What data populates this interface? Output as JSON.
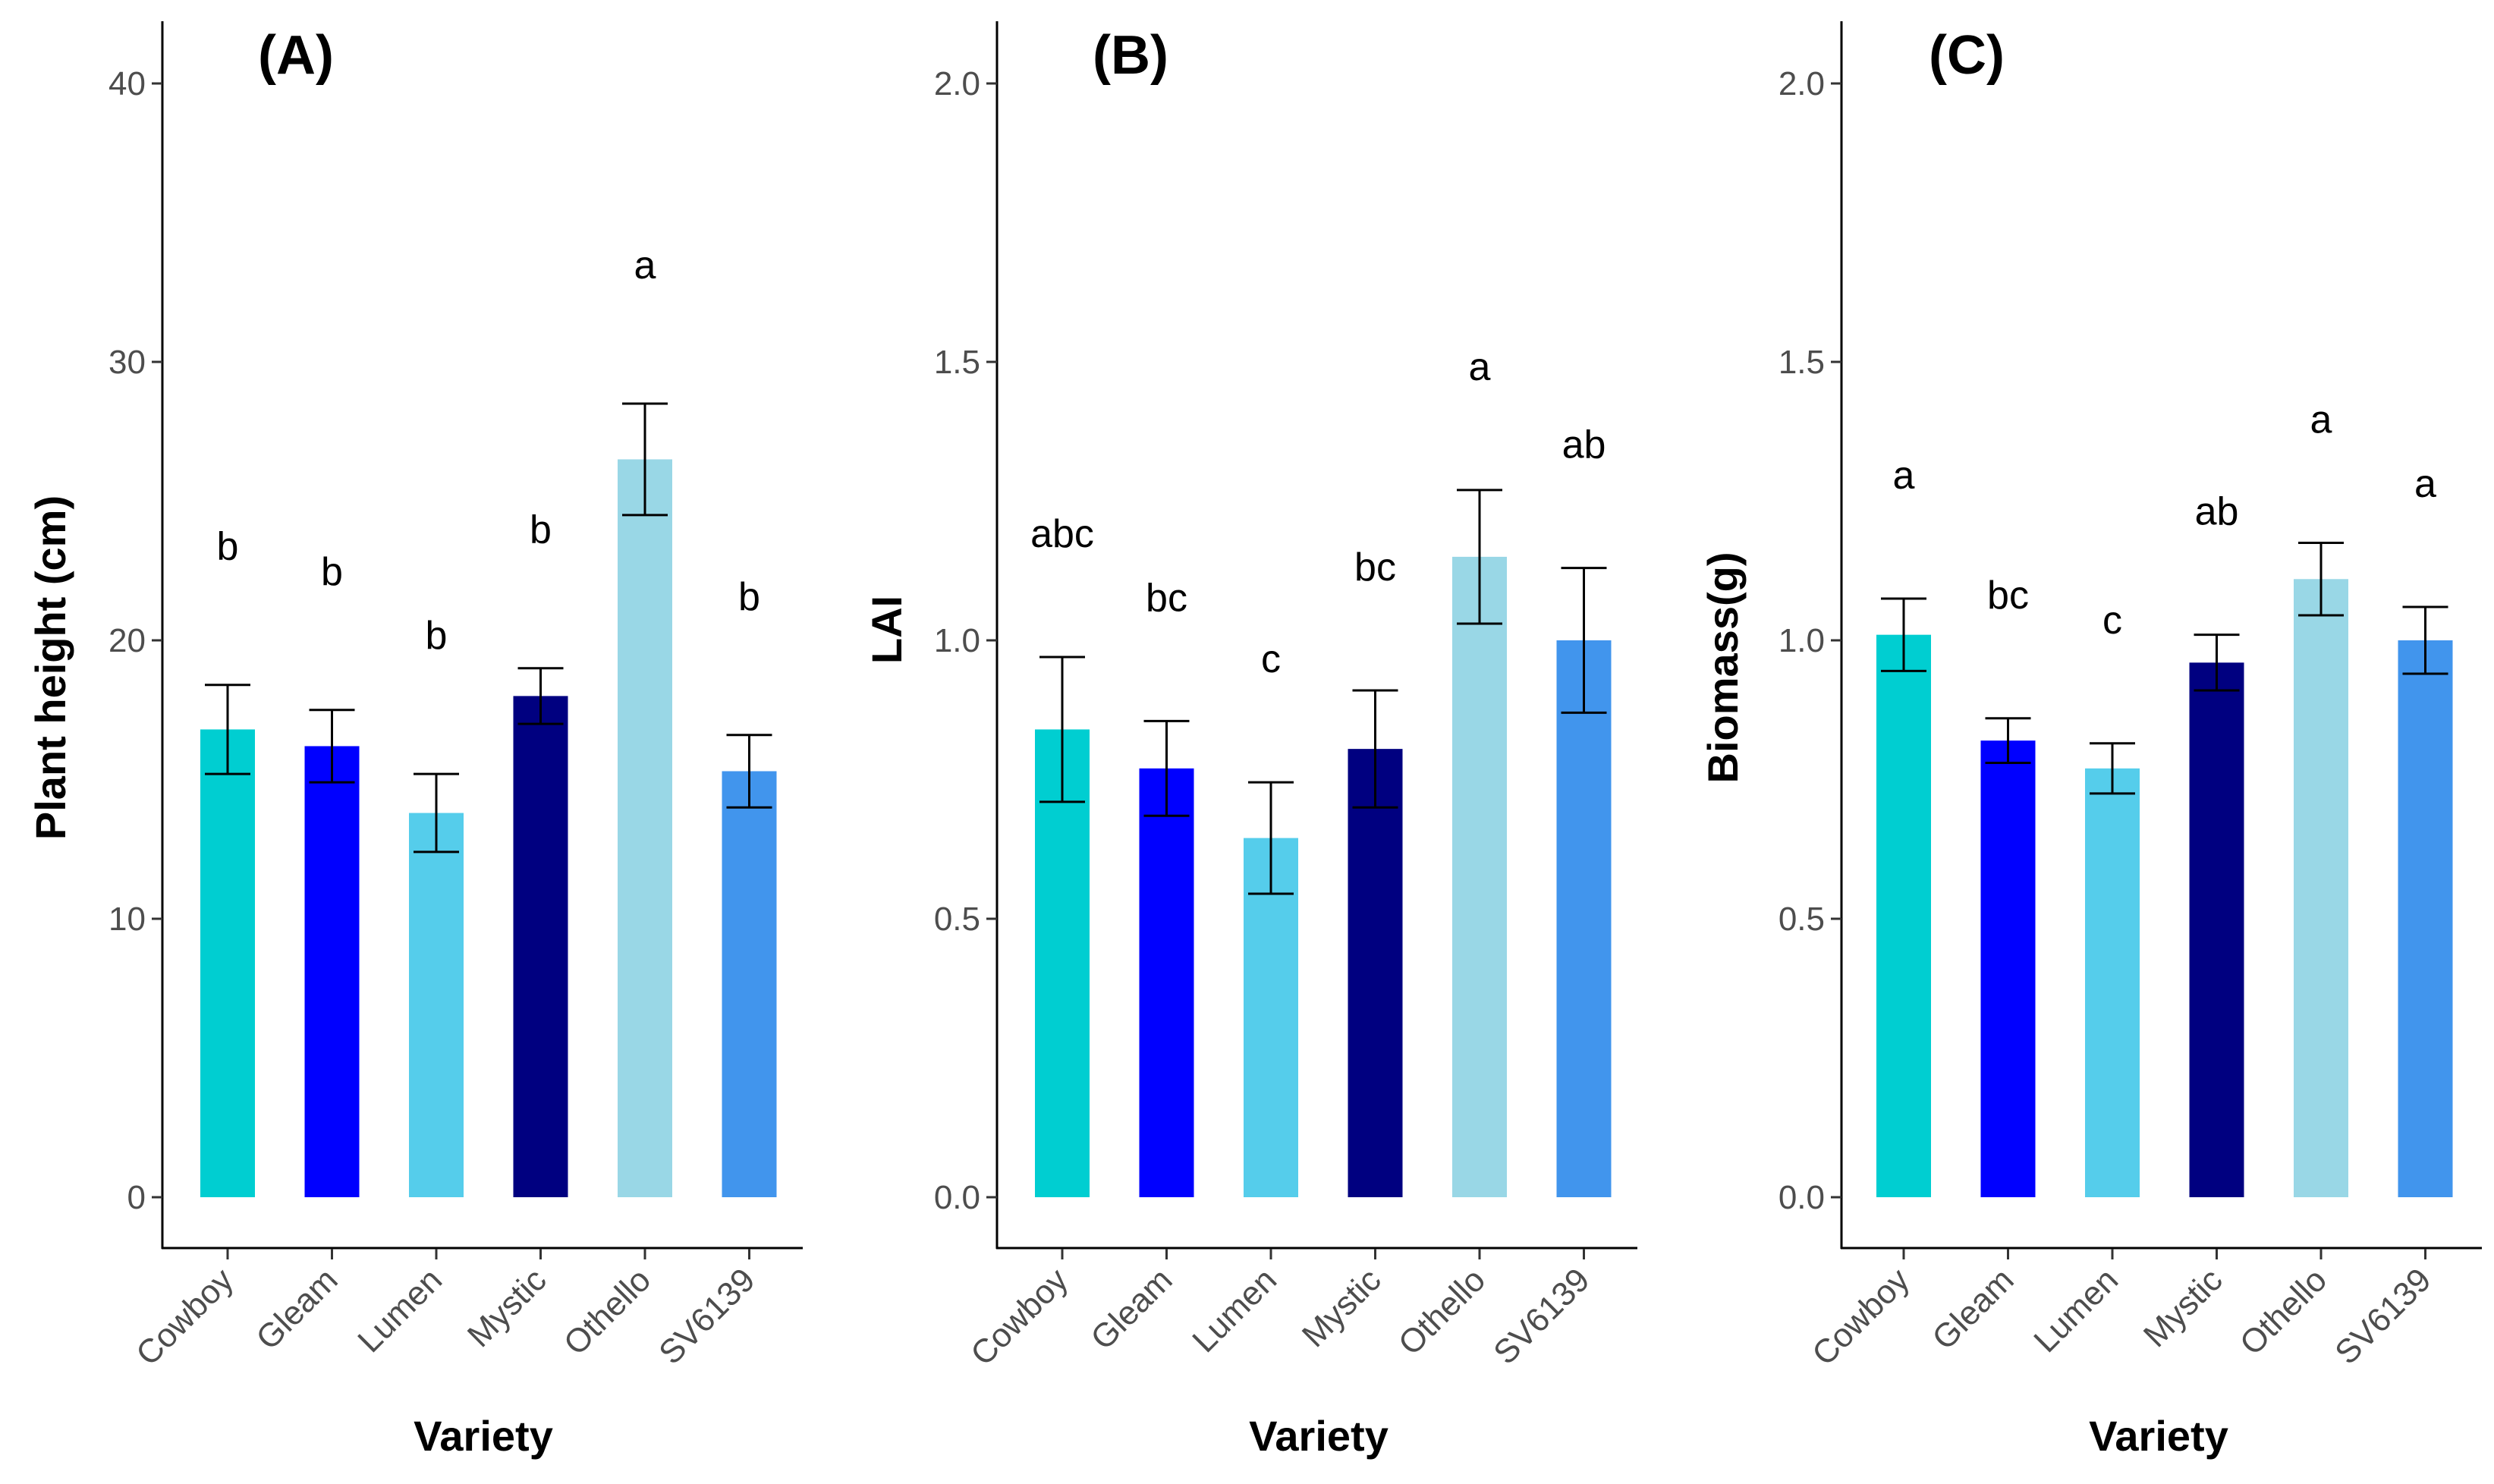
{
  "chart_data": [
    {
      "type": "bar",
      "title": "(A)",
      "xlabel": "Variety",
      "ylabel": "Plant height (cm)",
      "ylim": [
        0,
        40
      ],
      "yticks": [
        0,
        10,
        20,
        30,
        40
      ],
      "grid": false,
      "categories": [
        "Cowboy",
        "Gleam",
        "Lumen",
        "Mystic",
        "Othello",
        "SV6139"
      ],
      "values": [
        16.8,
        16.2,
        13.8,
        18.0,
        26.5,
        15.3
      ],
      "errors": [
        1.6,
        1.3,
        1.4,
        1.0,
        2.0,
        1.3
      ],
      "letters": [
        "b",
        "b",
        "b",
        "b",
        "a",
        "b"
      ],
      "colors": [
        "#00CED1",
        "#0000FF",
        "#55CDEB",
        "#000080",
        "#99D7E6",
        "#4195ED"
      ]
    },
    {
      "type": "bar",
      "title": "(B)",
      "xlabel": "Variety",
      "ylabel": "LAI",
      "ylim": [
        0,
        2
      ],
      "yticks": [
        "0.0",
        "0.5",
        "1.0",
        "1.5",
        "2.0"
      ],
      "grid": false,
      "categories": [
        "Cowboy",
        "Gleam",
        "Lumen",
        "Mystic",
        "Othello",
        "SV6139"
      ],
      "values": [
        0.84,
        0.77,
        0.645,
        0.805,
        1.15,
        1.0
      ],
      "errors": [
        0.13,
        0.085,
        0.1,
        0.105,
        0.12,
        0.13
      ],
      "letters": [
        "abc",
        "bc",
        "c",
        "bc",
        "a",
        "ab"
      ],
      "colors": [
        "#00CED1",
        "#0000FF",
        "#55CDEB",
        "#000080",
        "#99D7E6",
        "#4195ED"
      ]
    },
    {
      "type": "bar",
      "title": "(C)",
      "xlabel": "Variety",
      "ylabel": "Biomass(g)",
      "ylim": [
        0,
        2
      ],
      "yticks": [
        "0.0",
        "0.5",
        "1.0",
        "1.5",
        "2.0"
      ],
      "grid": false,
      "categories": [
        "Cowboy",
        "Gleam",
        "Lumen",
        "Mystic",
        "Othello",
        "SV6139"
      ],
      "values": [
        1.01,
        0.82,
        0.77,
        0.96,
        1.11,
        1.0
      ],
      "errors": [
        0.065,
        0.04,
        0.045,
        0.05,
        0.065,
        0.06
      ],
      "letters": [
        "a",
        "bc",
        "c",
        "ab",
        "a",
        "a"
      ],
      "colors": [
        "#00CED1",
        "#0000FF",
        "#55CDEB",
        "#000080",
        "#99D7E6",
        "#4195ED"
      ]
    }
  ]
}
